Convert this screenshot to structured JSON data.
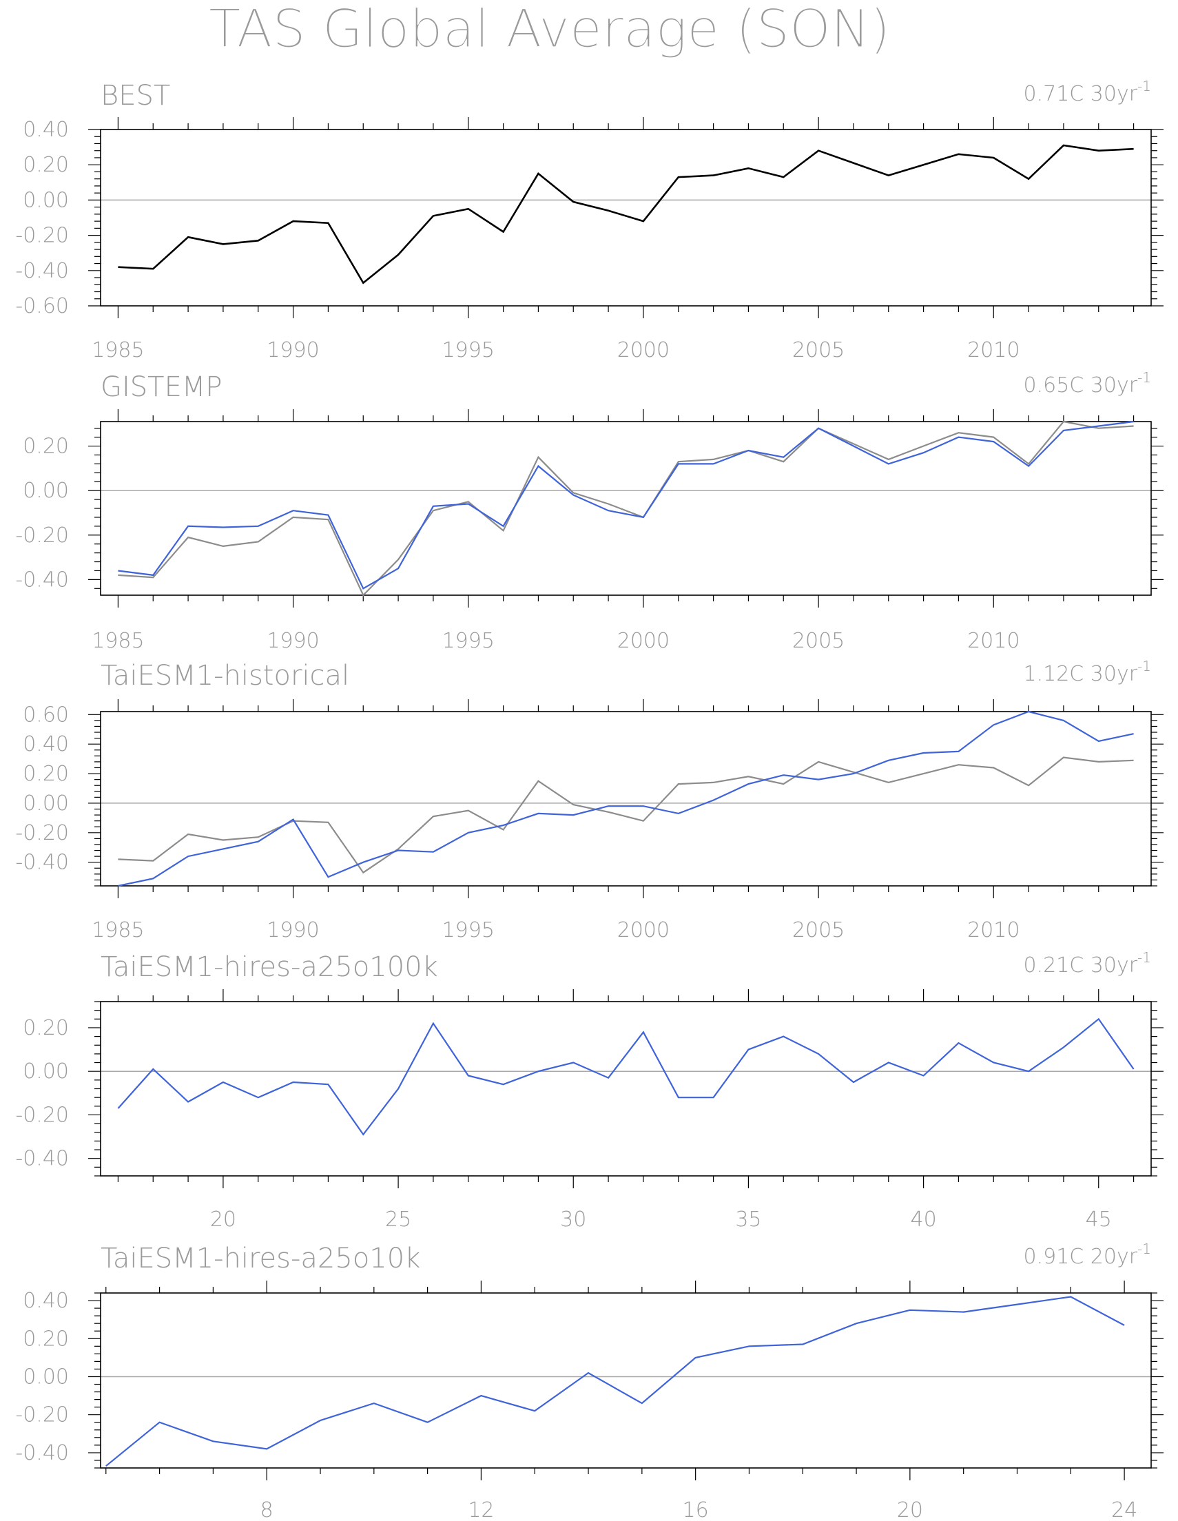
{
  "title": "TAS Global Average (SON)",
  "colors": {
    "text": "#9a9a9a",
    "frame": "#000000",
    "zero_line": "#a8a8a8",
    "obs_black": "#000000",
    "obs_gray": "#8c8c8c",
    "model_blue": "#3f63d8"
  },
  "chart_data": [
    {
      "type": "line",
      "title": "BEST",
      "trend_value": "0.71C 30yr",
      "trend_exp": "-1",
      "x_ticks": [
        1985,
        1990,
        1995,
        2000,
        2005,
        2010
      ],
      "xlim": [
        1984.5,
        2014.5
      ],
      "ylim": [
        -0.6,
        0.4
      ],
      "y_ticks": [
        "0.40",
        "0.20",
        "0.00",
        "-0.20",
        "-0.40",
        "-0.60"
      ],
      "series": [
        {
          "color": "#000000",
          "x": [
            1985,
            1986,
            1987,
            1988,
            1989,
            1990,
            1991,
            1992,
            1993,
            1994,
            1995,
            1996,
            1997,
            1998,
            1999,
            2000,
            2001,
            2002,
            2003,
            2004,
            2005,
            2006,
            2007,
            2008,
            2009,
            2010,
            2011,
            2012,
            2013,
            2014
          ],
          "values": [
            -0.38,
            -0.39,
            -0.21,
            -0.25,
            -0.23,
            -0.12,
            -0.13,
            -0.47,
            -0.31,
            -0.09,
            -0.05,
            -0.18,
            0.15,
            -0.01,
            -0.06,
            -0.12,
            0.13,
            0.14,
            0.18,
            0.13,
            0.28,
            0.21,
            0.14,
            0.2,
            0.26,
            0.24,
            0.12,
            0.31,
            0.28,
            0.29
          ]
        }
      ]
    },
    {
      "type": "line",
      "title": "GISTEMP",
      "trend_value": "0.65C 30yr",
      "trend_exp": "-1",
      "x_ticks": [
        1985,
        1990,
        1995,
        2000,
        2005,
        2010
      ],
      "xlim": [
        1984.5,
        2014.5
      ],
      "ylim": [
        -0.47,
        0.31
      ],
      "y_ticks": [
        "0.20",
        "0.00",
        "-0.20",
        "-0.40"
      ],
      "series": [
        {
          "color": "#8c8c8c",
          "x": [
            1985,
            1986,
            1987,
            1988,
            1989,
            1990,
            1991,
            1992,
            1993,
            1994,
            1995,
            1996,
            1997,
            1998,
            1999,
            2000,
            2001,
            2002,
            2003,
            2004,
            2005,
            2006,
            2007,
            2008,
            2009,
            2010,
            2011,
            2012,
            2013,
            2014
          ],
          "values": [
            -0.38,
            -0.39,
            -0.21,
            -0.25,
            -0.23,
            -0.12,
            -0.13,
            -0.47,
            -0.31,
            -0.09,
            -0.05,
            -0.18,
            0.15,
            -0.01,
            -0.06,
            -0.12,
            0.13,
            0.14,
            0.18,
            0.13,
            0.28,
            0.21,
            0.14,
            0.2,
            0.26,
            0.24,
            0.12,
            0.31,
            0.28,
            0.29
          ]
        },
        {
          "color": "#3f63d8",
          "x": [
            1985,
            1986,
            1987,
            1988,
            1989,
            1990,
            1991,
            1992,
            1993,
            1994,
            1995,
            1996,
            1997,
            1998,
            1999,
            2000,
            2001,
            2002,
            2003,
            2004,
            2005,
            2006,
            2007,
            2008,
            2009,
            2010,
            2011,
            2012,
            2013,
            2014
          ],
          "values": [
            -0.36,
            -0.38,
            -0.16,
            -0.165,
            -0.16,
            -0.09,
            -0.11,
            -0.44,
            -0.35,
            -0.07,
            -0.06,
            -0.16,
            0.11,
            -0.02,
            -0.09,
            -0.12,
            0.12,
            0.12,
            0.18,
            0.15,
            0.28,
            0.2,
            0.12,
            0.17,
            0.24,
            0.22,
            0.11,
            0.27,
            0.29,
            0.31
          ]
        }
      ]
    },
    {
      "type": "line",
      "title": "TaiESM1-historical",
      "trend_value": "1.12C 30yr",
      "trend_exp": "-1",
      "x_ticks": [
        1985,
        1990,
        1995,
        2000,
        2005,
        2010
      ],
      "xlim": [
        1984.5,
        2014.5
      ],
      "ylim": [
        -0.56,
        0.62
      ],
      "y_ticks": [
        "0.60",
        "0.40",
        "0.20",
        "0.00",
        "-0.20",
        "-0.40"
      ],
      "series": [
        {
          "color": "#8c8c8c",
          "x": [
            1985,
            1986,
            1987,
            1988,
            1989,
            1990,
            1991,
            1992,
            1993,
            1994,
            1995,
            1996,
            1997,
            1998,
            1999,
            2000,
            2001,
            2002,
            2003,
            2004,
            2005,
            2006,
            2007,
            2008,
            2009,
            2010,
            2011,
            2012,
            2013,
            2014
          ],
          "values": [
            -0.38,
            -0.39,
            -0.21,
            -0.25,
            -0.23,
            -0.12,
            -0.13,
            -0.47,
            -0.31,
            -0.09,
            -0.05,
            -0.18,
            0.15,
            -0.01,
            -0.06,
            -0.12,
            0.13,
            0.14,
            0.18,
            0.13,
            0.28,
            0.21,
            0.14,
            0.2,
            0.26,
            0.24,
            0.12,
            0.31,
            0.28,
            0.29
          ]
        },
        {
          "color": "#3f63d8",
          "x": [
            1985,
            1986,
            1987,
            1988,
            1989,
            1990,
            1991,
            1992,
            1993,
            1994,
            1995,
            1996,
            1997,
            1998,
            1999,
            2000,
            2001,
            2002,
            2003,
            2004,
            2005,
            2006,
            2007,
            2008,
            2009,
            2010,
            2011,
            2012,
            2013,
            2014
          ],
          "values": [
            -0.56,
            -0.51,
            -0.36,
            -0.31,
            -0.26,
            -0.11,
            -0.5,
            -0.4,
            -0.32,
            -0.33,
            -0.2,
            -0.15,
            -0.07,
            -0.08,
            -0.02,
            -0.02,
            -0.07,
            0.02,
            0.13,
            0.19,
            0.16,
            0.2,
            0.29,
            0.34,
            0.35,
            0.53,
            0.62,
            0.56,
            0.42,
            0.47
          ]
        }
      ]
    },
    {
      "type": "line",
      "title": "TaiESM1-hires-a25o100k",
      "trend_value": "0.21C 30yr",
      "trend_exp": "-1",
      "x_ticks": [
        20,
        25,
        30,
        35,
        40,
        45
      ],
      "xlim": [
        16.5,
        46.5
      ],
      "ylim": [
        -0.48,
        0.32
      ],
      "y_ticks": [
        "0.20",
        "0.00",
        "-0.20",
        "-0.40"
      ],
      "series": [
        {
          "color": "#3f63d8",
          "x": [
            17,
            18,
            19,
            20,
            21,
            22,
            23,
            24,
            25,
            26,
            27,
            28,
            29,
            30,
            31,
            32,
            33,
            34,
            35,
            36,
            37,
            38,
            39,
            40,
            41,
            42,
            43,
            44,
            45,
            46
          ],
          "values": [
            -0.17,
            0.01,
            -0.14,
            -0.05,
            -0.12,
            -0.05,
            -0.06,
            -0.29,
            -0.08,
            0.22,
            -0.02,
            -0.06,
            0.0,
            0.04,
            -0.03,
            0.18,
            -0.12,
            -0.12,
            0.1,
            0.16,
            0.08,
            -0.05,
            0.04,
            -0.02,
            0.13,
            0.04,
            0.0,
            0.11,
            0.24,
            0.01
          ]
        }
      ]
    },
    {
      "type": "line",
      "title": "TaiESM1-hires-a25o10k",
      "trend_value": "0.91C 20yr",
      "trend_exp": "-1",
      "x_ticks": [
        8,
        12,
        16,
        20,
        24
      ],
      "xlim": [
        4.9,
        24.5
      ],
      "ylim": [
        -0.48,
        0.44
      ],
      "y_ticks": [
        "0.40",
        "0.20",
        "0.00",
        "-0.20",
        "-0.40"
      ],
      "series": [
        {
          "color": "#3f63d8",
          "x": [
            5,
            6,
            7,
            8,
            9,
            10,
            11,
            12,
            13,
            14,
            15,
            16,
            17,
            18,
            19,
            20,
            21,
            22,
            23,
            24
          ],
          "values": [
            -0.47,
            -0.24,
            -0.34,
            -0.38,
            -0.23,
            -0.14,
            -0.24,
            -0.1,
            -0.18,
            0.02,
            -0.14,
            0.1,
            0.16,
            0.17,
            0.28,
            0.35,
            0.34,
            0.38,
            0.42,
            0.27
          ]
        }
      ]
    }
  ]
}
